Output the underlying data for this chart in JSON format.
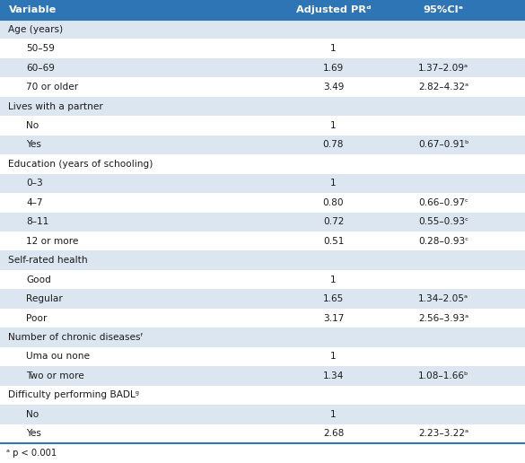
{
  "title_col1": "Variable",
  "title_col2": "Adjusted PRᵈ",
  "title_col3": "95%CIᵉ",
  "header_color": "#2E75B6",
  "header_text_color": "#FFFFFF",
  "row_alt_color": "#DCE6F1",
  "row_white_color": "#FFFFFF",
  "border_color": "#2E75B6",
  "text_color": "#1A1A1A",
  "footnote": "ᵃ p < 0.001",
  "fig_width": 5.85,
  "fig_height": 5.16,
  "dpi": 100,
  "rows": [
    {
      "label": "Age (years)",
      "pr": "",
      "ci": "",
      "indent": 0,
      "alt": true
    },
    {
      "label": "50–59",
      "pr": "1",
      "ci": "",
      "indent": 1,
      "alt": false
    },
    {
      "label": "60–69",
      "pr": "1.69",
      "ci": "1.37–2.09ᵃ",
      "indent": 1,
      "alt": true
    },
    {
      "label": "70 or older",
      "pr": "3.49",
      "ci": "2.82–4.32ᵃ",
      "indent": 1,
      "alt": false
    },
    {
      "label": "Lives with a partner",
      "pr": "",
      "ci": "",
      "indent": 0,
      "alt": true
    },
    {
      "label": "No",
      "pr": "1",
      "ci": "",
      "indent": 1,
      "alt": false
    },
    {
      "label": "Yes",
      "pr": "0.78",
      "ci": "0.67–0.91ᵇ",
      "indent": 1,
      "alt": true
    },
    {
      "label": "Education (years of schooling)",
      "pr": "",
      "ci": "",
      "indent": 0,
      "alt": false
    },
    {
      "label": "0–3",
      "pr": "1",
      "ci": "",
      "indent": 1,
      "alt": true
    },
    {
      "label": "4–7",
      "pr": "0.80",
      "ci": "0.66–0.97ᶜ",
      "indent": 1,
      "alt": false
    },
    {
      "label": "8–11",
      "pr": "0.72",
      "ci": "0.55–0.93ᶜ",
      "indent": 1,
      "alt": true
    },
    {
      "label": "12 or more",
      "pr": "0.51",
      "ci": "0.28–0.93ᶜ",
      "indent": 1,
      "alt": false
    },
    {
      "label": "Self-rated health",
      "pr": "",
      "ci": "",
      "indent": 0,
      "alt": true
    },
    {
      "label": "Good",
      "pr": "1",
      "ci": "",
      "indent": 1,
      "alt": false
    },
    {
      "label": "Regular",
      "pr": "1.65",
      "ci": "1.34–2.05ᵃ",
      "indent": 1,
      "alt": true
    },
    {
      "label": "Poor",
      "pr": "3.17",
      "ci": "2.56–3.93ᵃ",
      "indent": 1,
      "alt": false
    },
    {
      "label": "Number of chronic diseasesᶠ",
      "pr": "",
      "ci": "",
      "indent": 0,
      "alt": true
    },
    {
      "label": "Uma ou none",
      "pr": "1",
      "ci": "",
      "indent": 1,
      "alt": false
    },
    {
      "label": "Two or more",
      "pr": "1.34",
      "ci": "1.08–1.66ᵇ",
      "indent": 1,
      "alt": true
    },
    {
      "label": "Difficulty performing BADLᵍ",
      "pr": "",
      "ci": "",
      "indent": 0,
      "alt": false
    },
    {
      "label": "No",
      "pr": "1",
      "ci": "",
      "indent": 1,
      "alt": true
    },
    {
      "label": "Yes",
      "pr": "2.68",
      "ci": "2.23–3.22ᵃ",
      "indent": 1,
      "alt": false
    }
  ]
}
